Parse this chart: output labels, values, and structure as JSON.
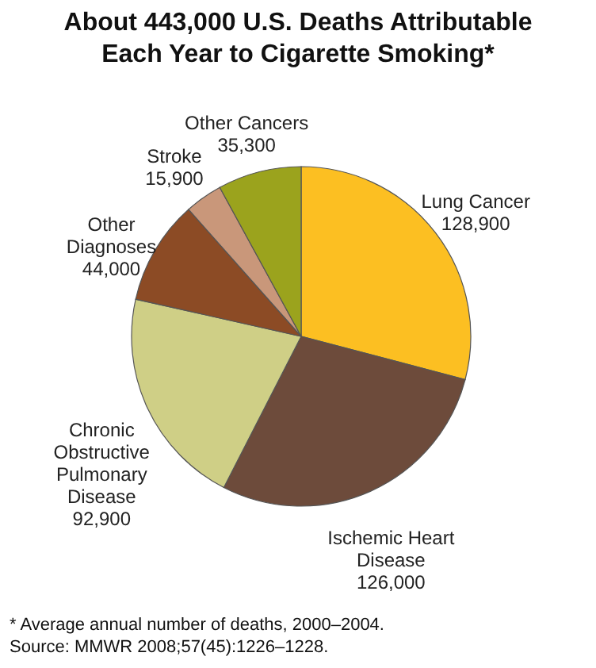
{
  "chart_data": {
    "type": "pie",
    "title": "About 443,000 U.S. Deaths Attributable Each Year to Cigarette Smoking*",
    "categories": [
      "Lung Cancer",
      "Ischemic Heart Disease",
      "Chronic Obstructive Pulmonary Disease",
      "Other Diagnoses",
      "Stroke",
      "Other Cancers"
    ],
    "values": [
      128900,
      126000,
      92900,
      44000,
      15900,
      35300
    ],
    "value_labels": [
      "128,900",
      "126,000",
      "92,900",
      "44,000",
      "15,900",
      "35,300"
    ],
    "colors": [
      "#fcbf22",
      "#6d4b3b",
      "#cfcf86",
      "#8c4b25",
      "#c9977a",
      "#9ba31d"
    ],
    "annotations": [
      "* Average annual number of deaths, 2000–2004.",
      "Source: MMWR 2008;57(45):1226–1228."
    ]
  }
}
